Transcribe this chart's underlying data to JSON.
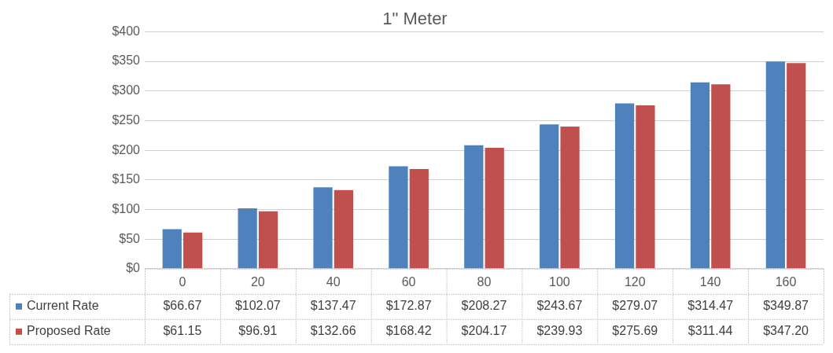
{
  "chart_data": {
    "type": "bar",
    "title": "1\" Meter",
    "categories": [
      "0",
      "20",
      "40",
      "60",
      "80",
      "100",
      "120",
      "140",
      "160"
    ],
    "series": [
      {
        "name": "Current Rate",
        "color": "#4f81bd",
        "values": [
          66.67,
          102.07,
          137.47,
          172.87,
          208.27,
          243.67,
          279.07,
          314.47,
          349.87
        ],
        "value_labels": [
          "$66.67",
          "$102.07",
          "$137.47",
          "$172.87",
          "$208.27",
          "$243.67",
          "$279.07",
          "$314.47",
          "$349.87"
        ]
      },
      {
        "name": "Proposed Rate",
        "color": "#c0504d",
        "values": [
          61.15,
          96.91,
          132.66,
          168.42,
          204.17,
          239.93,
          275.69,
          311.44,
          347.2
        ],
        "value_labels": [
          "$61.15",
          "$96.91",
          "$132.66",
          "$168.42",
          "$204.17",
          "$239.93",
          "$275.69",
          "$311.44",
          "$347.20"
        ]
      }
    ],
    "ylim": [
      0,
      400
    ],
    "yticks": [
      {
        "value": 0,
        "label": "$0"
      },
      {
        "value": 50,
        "label": "$50"
      },
      {
        "value": 100,
        "label": "$100"
      },
      {
        "value": 150,
        "label": "$150"
      },
      {
        "value": 200,
        "label": "$200"
      },
      {
        "value": 250,
        "label": "$250"
      },
      {
        "value": 300,
        "label": "$300"
      },
      {
        "value": 350,
        "label": "$350"
      },
      {
        "value": 400,
        "label": "$400"
      }
    ],
    "grid": "y",
    "legend": "bottom left"
  }
}
